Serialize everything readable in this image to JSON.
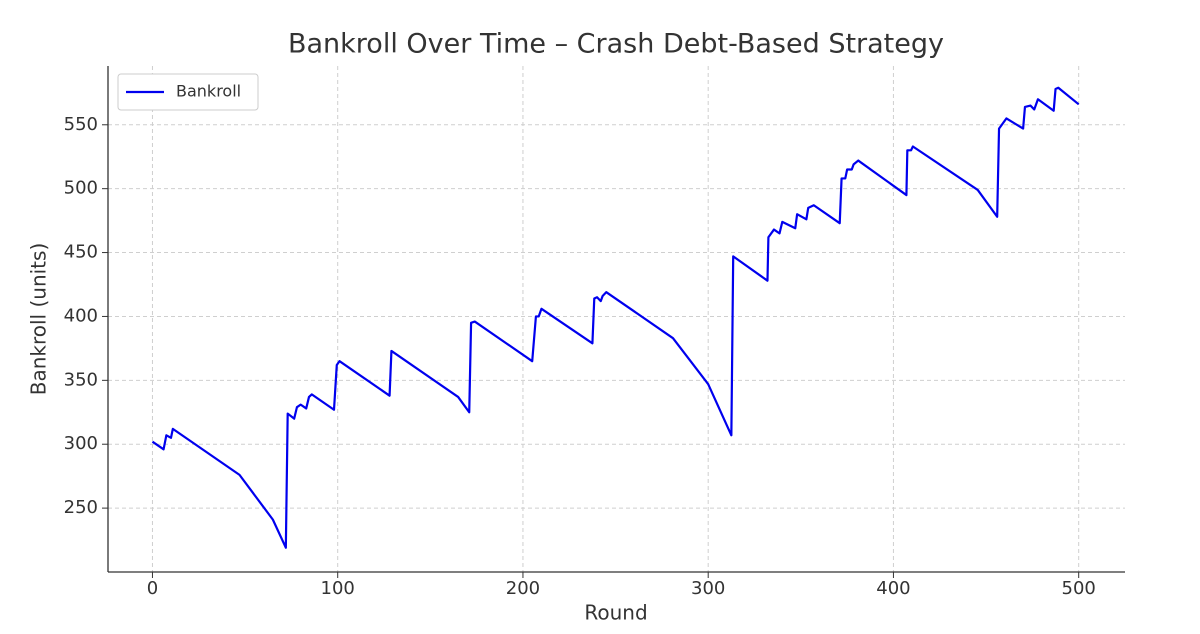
{
  "chart_data": {
    "type": "line",
    "title": "Bankroll Over Time – Crash Debt-Based Strategy",
    "x_label": "Round",
    "y_label": "Bankroll (units)",
    "x": [
      0,
      6,
      7.5,
      10,
      11,
      47,
      65,
      72,
      73,
      76.5,
      78,
      80,
      83,
      84.5,
      86,
      98,
      99.5,
      101,
      128,
      129,
      165,
      171,
      172,
      174,
      205,
      207,
      208.5,
      210,
      237.5,
      238.5,
      240,
      242,
      243,
      245,
      281,
      300,
      312.5,
      313.5,
      332,
      332.5,
      335.5,
      338.5,
      340,
      347,
      348,
      353,
      354,
      357,
      371,
      372,
      374,
      375,
      377.5,
      378.5,
      381,
      407,
      407.5,
      409.5,
      410.5,
      445.5,
      456,
      457,
      461,
      470,
      471,
      474,
      476,
      478,
      486.5,
      487.5,
      489,
      500
    ],
    "series": [
      {
        "name": "Bankroll",
        "color": "#0000ee",
        "values": [
          302,
          296,
          307,
          305,
          312,
          276,
          241,
          219,
          324,
          320,
          329,
          331,
          328,
          337,
          339,
          327,
          362,
          365,
          338,
          373,
          337,
          325,
          395,
          396,
          365,
          400,
          400,
          406,
          379,
          414,
          415,
          412,
          416,
          419,
          383,
          347,
          307,
          447,
          428,
          462,
          468,
          465,
          474,
          469,
          480,
          476,
          485,
          487,
          473,
          508,
          508,
          515,
          515,
          519,
          522,
          495,
          530,
          530,
          533,
          499,
          478,
          547,
          555,
          547,
          564,
          565,
          562,
          570,
          561,
          578,
          579,
          566
        ]
      }
    ],
    "xlim": [
      -24,
      525
    ],
    "ylim": [
      200,
      596
    ],
    "xticks": [
      0,
      100,
      200,
      300,
      400,
      500
    ],
    "yticks": [
      250,
      300,
      350,
      400,
      450,
      500,
      550
    ],
    "grid": true,
    "legend_loc": "upper left"
  }
}
